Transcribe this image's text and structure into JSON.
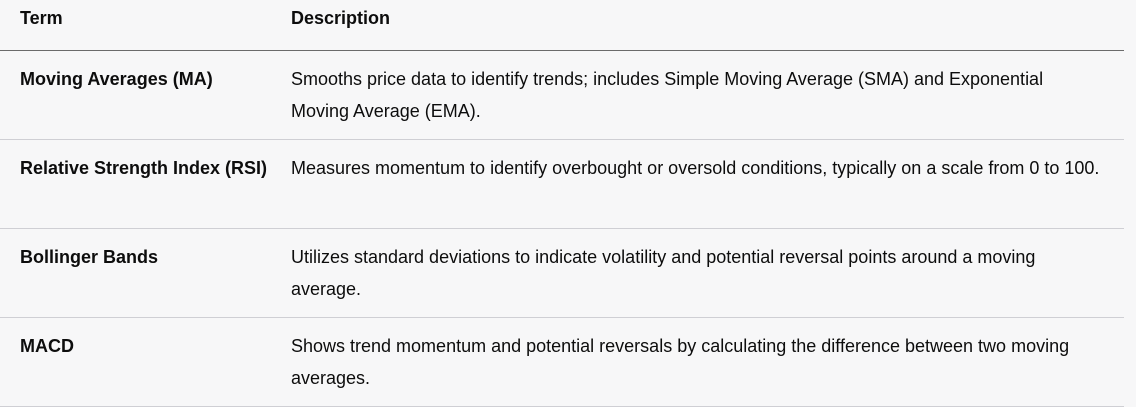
{
  "table": {
    "headers": [
      "Term",
      "Description"
    ],
    "rows": [
      {
        "term": "Moving Averages (MA)",
        "description": "Smooths price data to identify trends; includes Simple Moving Average (SMA) and Exponential Moving Average (EMA)."
      },
      {
        "term": "Relative Strength Index (RSI)",
        "description": "Measures momentum to identify overbought or oversold conditions, typically on a scale from 0 to 100."
      },
      {
        "term": "Bollinger Bands",
        "description": "Utilizes standard deviations to indicate volatility and potential reversal points around a moving average."
      },
      {
        "term": "MACD",
        "description": "Shows trend momentum and potential reversals by calculating the difference between two moving averages."
      }
    ]
  }
}
